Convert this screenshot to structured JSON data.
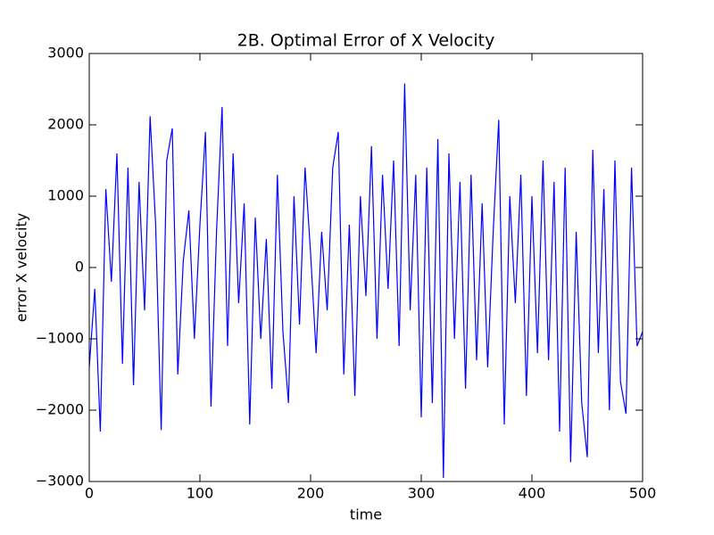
{
  "chart_data": {
    "type": "line",
    "title": "2B. Optimal Error of X Velocity",
    "xlabel": "time",
    "ylabel": "error X velocity",
    "x": [
      0,
      5,
      10,
      15,
      20,
      25,
      30,
      35,
      40,
      45,
      50,
      55,
      60,
      65,
      70,
      75,
      80,
      85,
      90,
      95,
      100,
      105,
      110,
      115,
      120,
      125,
      130,
      135,
      140,
      145,
      150,
      155,
      160,
      165,
      170,
      175,
      180,
      185,
      190,
      195,
      200,
      205,
      210,
      215,
      220,
      225,
      230,
      235,
      240,
      245,
      250,
      255,
      260,
      265,
      270,
      275,
      280,
      285,
      290,
      295,
      300,
      305,
      310,
      315,
      320,
      325,
      330,
      335,
      340,
      345,
      350,
      355,
      360,
      365,
      370,
      375,
      380,
      385,
      390,
      395,
      400,
      405,
      410,
      415,
      420,
      425,
      430,
      435,
      440,
      445,
      450,
      455,
      460,
      465,
      470,
      475,
      480,
      485,
      490,
      495,
      500
    ],
    "series": [
      {
        "name": "error",
        "color": "#0000ff",
        "values": [
          -1400,
          -300,
          -2300,
          1100,
          -200,
          1600,
          -1350,
          1400,
          -1650,
          1200,
          -600,
          2120,
          600,
          -2280,
          1500,
          1950,
          -1500,
          100,
          800,
          -1000,
          600,
          1900,
          -1950,
          500,
          2250,
          -1100,
          1600,
          -500,
          900,
          -2200,
          700,
          -1000,
          400,
          -1700,
          1300,
          -900,
          -1900,
          1000,
          -800,
          1400,
          200,
          -1200,
          500,
          -600,
          1400,
          1900,
          -1500,
          600,
          -1800,
          1000,
          -400,
          1700,
          -1000,
          1300,
          -300,
          1500,
          -1100,
          2580,
          -600,
          1300,
          -2100,
          1400,
          -1900,
          1800,
          -2950,
          1600,
          -1000,
          1200,
          -1700,
          1300,
          -1300,
          900,
          -1400,
          500,
          2070,
          -2200,
          1000,
          -500,
          1300,
          -1800,
          1000,
          -1200,
          1500,
          -1300,
          1200,
          -2300,
          1400,
          -2730,
          500,
          -1900,
          -2660,
          1650,
          -1200,
          1100,
          -2000,
          1500,
          -1600,
          -2050,
          1400,
          -1100,
          -900
        ]
      }
    ],
    "xlim": [
      0,
      500
    ],
    "ylim": [
      -3000,
      3000
    ],
    "xticks": [
      0,
      100,
      200,
      300,
      400,
      500
    ],
    "yticks": [
      {
        "value": -3000,
        "label": "−3000"
      },
      {
        "value": -2000,
        "label": "−2000"
      },
      {
        "value": -1000,
        "label": "−1000"
      },
      0,
      1000,
      2000,
      3000
    ],
    "grid": false
  }
}
